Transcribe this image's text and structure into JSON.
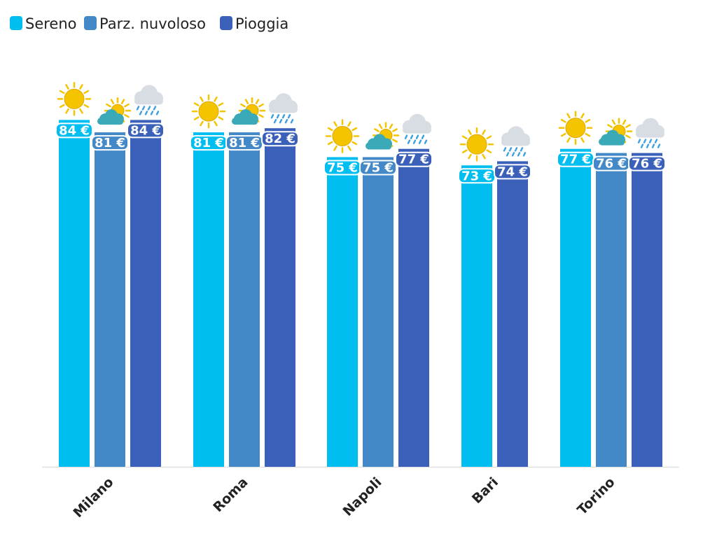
{
  "colors": {
    "sereno": "#00bff0",
    "parz_nuvoloso": "#4389c8",
    "pioggia": "#3a60ba",
    "axis": "#e2e2e2",
    "sun": "#f5c400",
    "sun_outline": "#e0a800",
    "cloud_grey": "#d7dde3",
    "cloud_teal": "#3aaab8",
    "rain": "#3aa0e0",
    "text_dark": "#222222",
    "label_text": "#ffffff"
  },
  "chart_data": {
    "type": "bar",
    "categories": [
      "Milano",
      "Roma",
      "Napoli",
      "Bari",
      "Torino"
    ],
    "series": [
      {
        "name": "Sereno",
        "icon": "sun-icon",
        "values": [
          84,
          81,
          75,
          73,
          77
        ],
        "labels": [
          "84 €",
          "81 €",
          "75 €",
          "73 €",
          "77 €"
        ]
      },
      {
        "name": "Parz. nuvoloso",
        "icon": "partly-cloudy-icon",
        "values": [
          81,
          81,
          75,
          null,
          76
        ],
        "labels": [
          "81 €",
          "81 €",
          "75 €",
          "",
          "76 €"
        ]
      },
      {
        "name": "Pioggia",
        "icon": "rain-cloud-icon",
        "values": [
          84,
          82,
          77,
          74,
          76
        ],
        "labels": [
          "84 €",
          "82 €",
          "77 €",
          "74 €",
          "76 €"
        ]
      }
    ],
    "title": "",
    "xlabel": "",
    "ylabel": "",
    "ylim": [
      0,
      100
    ],
    "legend_position": "top-left",
    "grid": false,
    "value_unit": "€"
  }
}
